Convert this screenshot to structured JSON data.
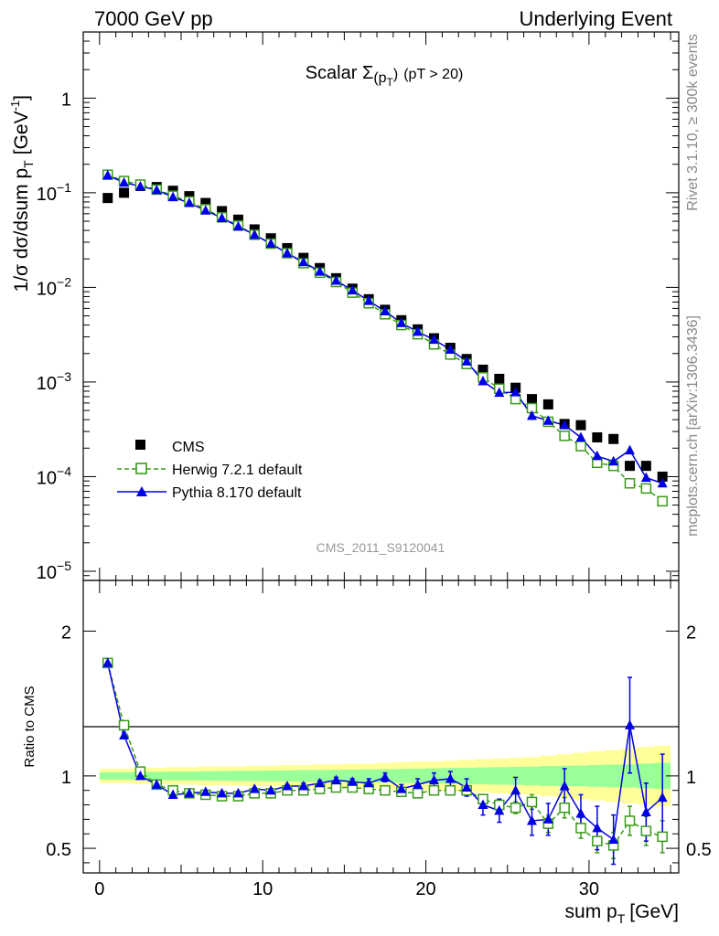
{
  "header": {
    "left": "7000 GeV pp",
    "right": "Underlying Event"
  },
  "side_labels": {
    "rivet": "Rivet 3.1.10, ≥ 300k events",
    "mcplots": "mcplots.cern.ch [arXiv:1306.3436]"
  },
  "colors": {
    "cms": "#000000",
    "herwig": "#3a9a1a",
    "pythia": "#0000e6",
    "band_outer": "#ffff99",
    "band_inner": "#99ff99"
  },
  "chart_data": [
    {
      "type": "scatter",
      "id": "main",
      "title_prefix": "Scalar Σ",
      "title_sub": "(p",
      "title_sub2": "T",
      "title_close": ")",
      "title_suffix": "(pT > 20)",
      "yscale": "log",
      "ylim": [
        8e-06,
        5
      ],
      "xlim": [
        -1,
        35.5
      ],
      "ylabel": "1/σ dσ/dsum p",
      "ylabel_sub": "T",
      "ylabel_unit": "[GeV",
      "ylabel_sup": "-1",
      "ylabel_close": "]",
      "yticks": [
        {
          "v": 1e-05,
          "base": "10",
          "exp": "−5"
        },
        {
          "v": 0.0001,
          "base": "10",
          "exp": "−4"
        },
        {
          "v": 0.001,
          "base": "10",
          "exp": "−3"
        },
        {
          "v": 0.01,
          "base": "10",
          "exp": "−2"
        },
        {
          "v": 0.1,
          "base": "10",
          "exp": "−1"
        },
        {
          "v": 1,
          "base": "1",
          "exp": ""
        }
      ],
      "watermark": "CMS_2011_S9120041",
      "legend_position": "lower-left",
      "x": [
        0.5,
        1.5,
        2.5,
        3.5,
        4.5,
        5.5,
        6.5,
        7.5,
        8.5,
        9.5,
        10.5,
        11.5,
        12.5,
        13.5,
        14.5,
        15.5,
        16.5,
        17.5,
        18.5,
        19.5,
        20.5,
        21.5,
        22.5,
        23.5,
        24.5,
        25.5,
        26.5,
        27.5,
        28.5,
        29.5,
        30.5,
        31.5,
        32.5,
        33.5,
        34.5
      ],
      "series": [
        {
          "name": "CMS",
          "marker": "filled-square",
          "values": [
            0.088,
            0.1,
            0.118,
            0.115,
            0.105,
            0.092,
            0.078,
            0.064,
            0.052,
            0.041,
            0.033,
            0.026,
            0.0205,
            0.016,
            0.0125,
            0.0097,
            0.0075,
            0.0058,
            0.0045,
            0.0036,
            0.0029,
            0.0023,
            0.00175,
            0.00135,
            0.00108,
            0.00087,
            0.00066,
            0.00058,
            0.00036,
            0.00035,
            0.00026,
            0.00025,
            0.00013,
            0.00013,
            0.0001
          ]
        },
        {
          "name": "Herwig 7.2.1 default",
          "marker": "open-square",
          "line": "dashed",
          "values": [
            0.155,
            0.133,
            0.122,
            0.108,
            0.093,
            0.081,
            0.067,
            0.055,
            0.045,
            0.036,
            0.029,
            0.023,
            0.018,
            0.0143,
            0.0114,
            0.0088,
            0.0068,
            0.0052,
            0.004,
            0.0032,
            0.0025,
            0.00195,
            0.00155,
            0.00112,
            0.00085,
            0.00066,
            0.00053,
            0.00038,
            0.00027,
            0.00021,
            0.00014,
            0.00013,
            8.5e-05,
            7.5e-05,
            5.5e-05
          ]
        },
        {
          "name": "Pythia 8.170 default",
          "marker": "filled-triangle",
          "line": "solid",
          "values": [
            0.153,
            0.128,
            0.117,
            0.107,
            0.09,
            0.078,
            0.065,
            0.054,
            0.044,
            0.036,
            0.029,
            0.023,
            0.0185,
            0.0147,
            0.0118,
            0.0093,
            0.0072,
            0.0056,
            0.0042,
            0.0034,
            0.0028,
            0.0022,
            0.00165,
            0.00102,
            0.00077,
            0.00078,
            0.00044,
            0.00039,
            0.00035,
            0.00026,
            0.000165,
            0.000145,
            0.00019,
            9.75e-05,
            8.5e-05
          ]
        }
      ]
    },
    {
      "type": "scatter",
      "id": "ratio",
      "ylim": [
        0.33,
        2.35
      ],
      "xlim": [
        -1,
        35.5
      ],
      "ylabel": "Ratio to CMS",
      "xlabel": "sum p",
      "xlabel_sub": "T",
      "xlabel_unit": "[GeV]",
      "xticks": [
        0,
        10,
        20,
        30
      ],
      "yticks": [
        0.5,
        1,
        2
      ],
      "x": [
        0.5,
        1.5,
        2.5,
        3.5,
        4.5,
        5.5,
        6.5,
        7.5,
        8.5,
        9.5,
        10.5,
        11.5,
        12.5,
        13.5,
        14.5,
        15.5,
        16.5,
        17.5,
        18.5,
        19.5,
        20.5,
        21.5,
        22.5,
        23.5,
        24.5,
        25.5,
        26.5,
        27.5,
        28.5,
        29.5,
        30.5,
        31.5,
        32.5,
        33.5,
        34.5
      ],
      "bands": {
        "yellow_half_width": [
          0.05,
          0.05,
          0.055,
          0.055,
          0.06,
          0.06,
          0.065,
          0.065,
          0.065,
          0.07,
          0.07,
          0.075,
          0.075,
          0.08,
          0.08,
          0.085,
          0.085,
          0.09,
          0.095,
          0.1,
          0.1,
          0.105,
          0.11,
          0.115,
          0.12,
          0.125,
          0.13,
          0.14,
          0.15,
          0.16,
          0.17,
          0.18,
          0.19,
          0.2,
          0.21
        ],
        "green_half_width": [
          0.025,
          0.025,
          0.028,
          0.028,
          0.03,
          0.03,
          0.032,
          0.033,
          0.035,
          0.035,
          0.037,
          0.038,
          0.04,
          0.04,
          0.042,
          0.043,
          0.045,
          0.046,
          0.048,
          0.05,
          0.052,
          0.054,
          0.056,
          0.058,
          0.06,
          0.062,
          0.065,
          0.068,
          0.07,
          0.072,
          0.075,
          0.078,
          0.08,
          0.085,
          0.09
        ]
      },
      "series": [
        {
          "name": "Herwig 7.2.1 default",
          "values": [
            1.78,
            1.35,
            1.03,
            0.94,
            0.9,
            0.88,
            0.87,
            0.86,
            0.86,
            0.88,
            0.88,
            0.9,
            0.9,
            0.91,
            0.92,
            0.92,
            0.91,
            0.9,
            0.89,
            0.88,
            0.9,
            0.9,
            0.9,
            0.84,
            0.8,
            0.78,
            0.82,
            0.67,
            0.78,
            0.64,
            0.55,
            0.52,
            0.69,
            0.62,
            0.58
          ],
          "err": [
            0,
            0.02,
            0.01,
            0.01,
            0.01,
            0.01,
            0.01,
            0.01,
            0.01,
            0.01,
            0.01,
            0.01,
            0.01,
            0.01,
            0.01,
            0.01,
            0.01,
            0.02,
            0.02,
            0.02,
            0.02,
            0.02,
            0.03,
            0.03,
            0.04,
            0.04,
            0.05,
            0.06,
            0.07,
            0.07,
            0.08,
            0.09,
            0.1,
            0.1,
            0.11
          ]
        },
        {
          "name": "Pythia 8.170 default",
          "values": [
            1.78,
            1.28,
            1.0,
            0.94,
            0.87,
            0.88,
            0.89,
            0.88,
            0.88,
            0.91,
            0.9,
            0.93,
            0.93,
            0.95,
            0.97,
            0.96,
            0.95,
            0.99,
            0.91,
            0.94,
            0.97,
            0.98,
            0.92,
            0.8,
            0.76,
            0.9,
            0.69,
            0.7,
            0.93,
            0.74,
            0.64,
            0.56,
            1.35,
            0.75,
            0.85
          ],
          "err": [
            0,
            0.02,
            0.01,
            0.01,
            0.01,
            0.01,
            0.01,
            0.01,
            0.01,
            0.01,
            0.01,
            0.01,
            0.02,
            0.02,
            0.02,
            0.02,
            0.03,
            0.03,
            0.03,
            0.04,
            0.05,
            0.05,
            0.06,
            0.07,
            0.08,
            0.09,
            0.1,
            0.11,
            0.12,
            0.13,
            0.15,
            0.17,
            0.33,
            0.2,
            0.3
          ]
        }
      ]
    }
  ]
}
